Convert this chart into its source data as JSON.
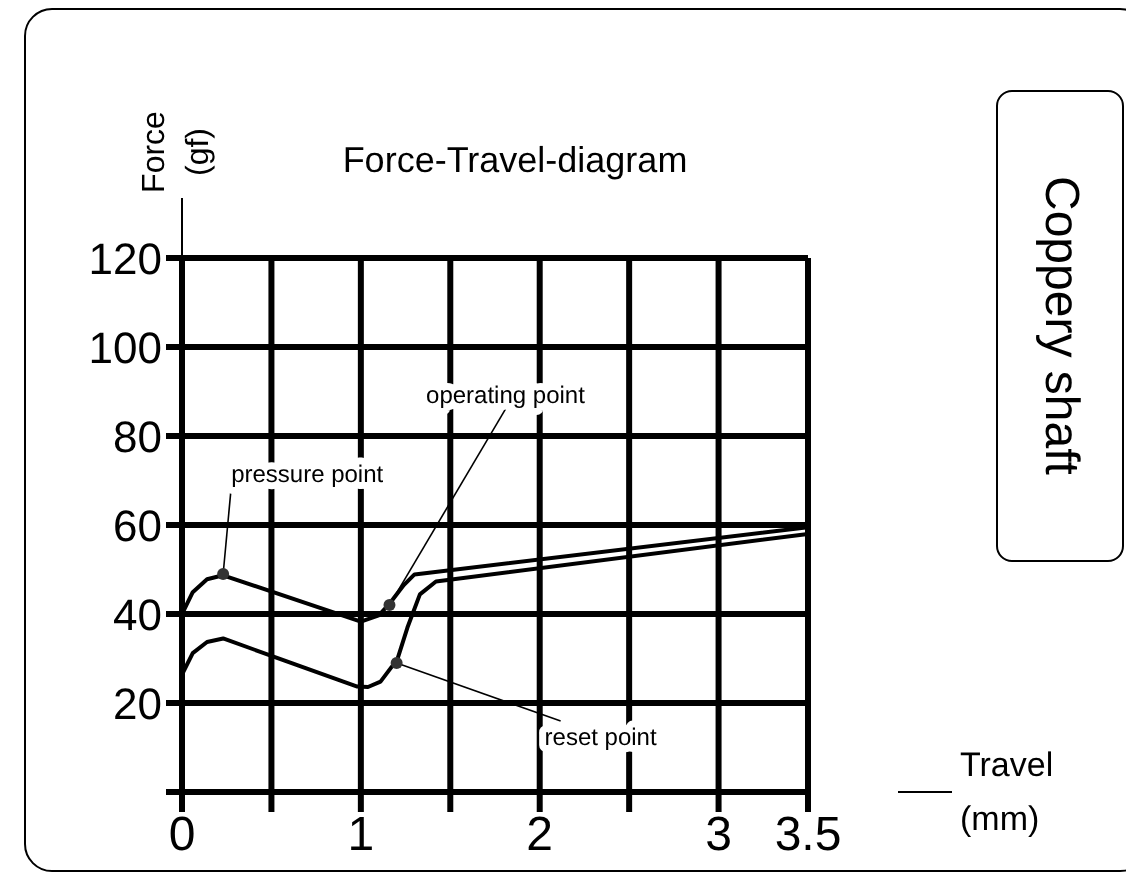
{
  "chart_data": {
    "type": "line",
    "title": "Force-Travel-diagram",
    "xlabel": "Travel (mm)",
    "ylabel": "Force (gf)",
    "annotations": [
      {
        "text": "pressure point",
        "x": 0.23,
        "y": 49
      },
      {
        "text": "operating point",
        "x": 1.16,
        "y": 42
      },
      {
        "text": "reset point",
        "x": 1.2,
        "y": 29
      },
      "Coppery shaft"
    ],
    "series": [
      {
        "type": "line",
        "color": "#000000",
        "x": [
          0,
          0.06,
          0.14,
          0.23,
          1.0,
          1.1,
          1.16,
          1.24,
          1.3,
          3.5
        ],
        "values": [
          40,
          44.9,
          47.8,
          48.7,
          38.3,
          39.7,
          42.3,
          46.5,
          48.9,
          59.5
        ]
      },
      {
        "type": "line",
        "color": "#000000",
        "x": [
          0,
          0.06,
          0.14,
          0.23,
          0.98,
          1.04,
          1.11,
          1.17,
          1.2,
          1.26,
          1.33,
          1.42,
          3.5
        ],
        "values": [
          26.4,
          31.2,
          33.7,
          34.5,
          23.7,
          23.6,
          24.8,
          28,
          29.3,
          36.9,
          44.4,
          47.3,
          58
        ]
      }
    ],
    "xlim": [
      0,
      3.5
    ],
    "xticks": [
      0,
      {
        "value": 0.5,
        "label": null
      },
      1,
      {
        "value": 1.5,
        "label": null
      },
      2,
      {
        "value": 2.5,
        "label": null
      },
      3,
      3.5
    ],
    "ylim": [
      0,
      120
    ],
    "yticks": [
      {
        "value": 0,
        "label": null
      },
      20,
      40,
      60,
      80,
      100,
      120
    ],
    "grid": true,
    "marker": "none",
    "line_style": "solid"
  }
}
